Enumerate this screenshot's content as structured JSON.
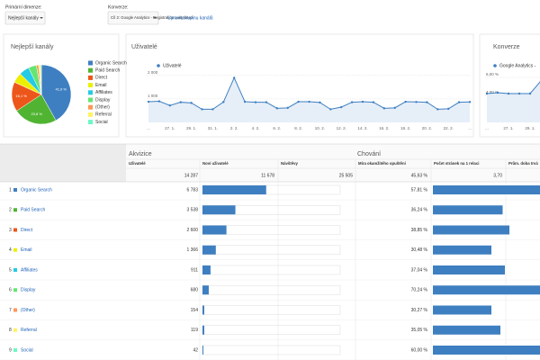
{
  "toolbar": {
    "primary_label": "Primární dimenze:",
    "primary_value": "Nejlepší kanály",
    "conversion_label": "Konverze:",
    "conversion_value": "Cíl 2: Google Analytics - Registration completed",
    "edit_link": "Upravit skupinu kanálů"
  },
  "chart_data": [
    {
      "type": "pie",
      "title": "Nejlepší kanály",
      "categories": [
        "Organic Search",
        "Paid Search",
        "Direct",
        "Email",
        "Affiliates",
        "Display",
        "(Other)",
        "Referral",
        "Social"
      ],
      "values": [
        41.9,
        23.8,
        16.1,
        5.5,
        5.6,
        4.4,
        1.2,
        1.0,
        0.5
      ],
      "value_labels": [
        "41,9 %",
        "23,8 %",
        "16,1 %",
        null,
        null,
        null,
        null,
        null,
        null
      ],
      "colors": [
        "#3e7fc1",
        "#50b432",
        "#ed561b",
        "#edef00",
        "#24cbe5",
        "#64e572",
        "#ff9655",
        "#fff263",
        "#6af9c4"
      ]
    },
    {
      "type": "line",
      "title": "Uživatelé",
      "categories": [
        "...",
        null,
        "27. 1.",
        null,
        "29. 1.",
        null,
        "31. 1.",
        null,
        "2. 2.",
        null,
        "4. 2.",
        null,
        "6. 2.",
        null,
        "8. 2.",
        null,
        "10. 2.",
        null,
        "12. 2.",
        null,
        "14. 2.",
        null,
        "16. 2.",
        null,
        "18. 2.",
        null,
        "20. 2.",
        null,
        "22. 2.",
        null,
        "..."
      ],
      "series": [
        {
          "name": "Uživatelé",
          "color": "#3e7fc1",
          "values": [
            880,
            900,
            720,
            860,
            830,
            560,
            560,
            870,
            1900,
            880,
            860,
            860,
            600,
            620,
            880,
            880,
            850,
            560,
            650,
            860,
            880,
            860,
            600,
            620,
            880,
            870,
            860,
            560,
            580,
            860,
            870
          ]
        }
      ],
      "ylim": [
        0,
        2300
      ],
      "yticks": [
        {
          "value": 1000,
          "label": "1 000"
        },
        {
          "value": 2000,
          "label": "2 000"
        }
      ],
      "grid": true
    },
    {
      "type": "line",
      "title": "Konverze",
      "categories": [
        "...",
        null,
        "27. 1.",
        null,
        "29. 1.",
        null
      ],
      "series": [
        {
          "name": "Google Analytics -",
          "color": "#3e7fc1",
          "values": [
            4.2,
            4.3,
            4.2,
            4.2,
            4.2,
            5.6
          ]
        }
      ],
      "ylim": [
        1,
        7
      ],
      "yticks": [
        {
          "value": 4,
          "label": "4,00 %"
        },
        {
          "value": 6,
          "label": "6,00 %"
        }
      ],
      "grid": true
    }
  ],
  "table": {
    "group_headers": [
      "Akvizice",
      "Chování"
    ],
    "columns": [
      "Uživatelé",
      "Noví uživatelé",
      "Návštěvy",
      "Míra okamžitého opuštění",
      "Počet stránek na 1 relaci",
      "Prům. doba trvá"
    ],
    "totals": [
      "14 287",
      "11 678",
      "25 505",
      "45,63 %",
      "3,70"
    ],
    "bar_xlim": {
      "new_users": [
        0,
        11678
      ],
      "pages": [
        0,
        6
      ]
    },
    "rows": [
      {
        "index": 1,
        "channel": "Organic Search",
        "users": "6 783",
        "new_users": 5400,
        "bounce": "57,81 %",
        "pages": 5.0
      },
      {
        "index": 2,
        "channel": "Paid Search",
        "users": "3 538",
        "new_users": 2790,
        "bounce": "36,24 %",
        "pages": 3.1
      },
      {
        "index": 3,
        "channel": "Direct",
        "users": "2 600",
        "new_users": 2030,
        "bounce": "38,85 %",
        "pages": 3.4
      },
      {
        "index": 4,
        "channel": "Email",
        "users": "1 366",
        "new_users": 1130,
        "bounce": "30,48 %",
        "pages": 2.6
      },
      {
        "index": 5,
        "channel": "Affiliates",
        "users": "911",
        "new_users": 680,
        "bounce": "37,04 %",
        "pages": 3.2
      },
      {
        "index": 6,
        "channel": "Display",
        "users": "680",
        "new_users": 530,
        "bounce": "70,24 %",
        "pages": 6.0
      },
      {
        "index": 7,
        "channel": "(Other)",
        "users": "154",
        "new_users": 150,
        "bounce": "30,27 %",
        "pages": 2.6
      },
      {
        "index": 8,
        "channel": "Referral",
        "users": "119",
        "new_users": 150,
        "bounce": "35,05 %",
        "pages": 3.0
      },
      {
        "index": 9,
        "channel": "Social",
        "users": "42",
        "new_users": 75,
        "bounce": "60,00 %",
        "pages": 5.5
      }
    ]
  }
}
